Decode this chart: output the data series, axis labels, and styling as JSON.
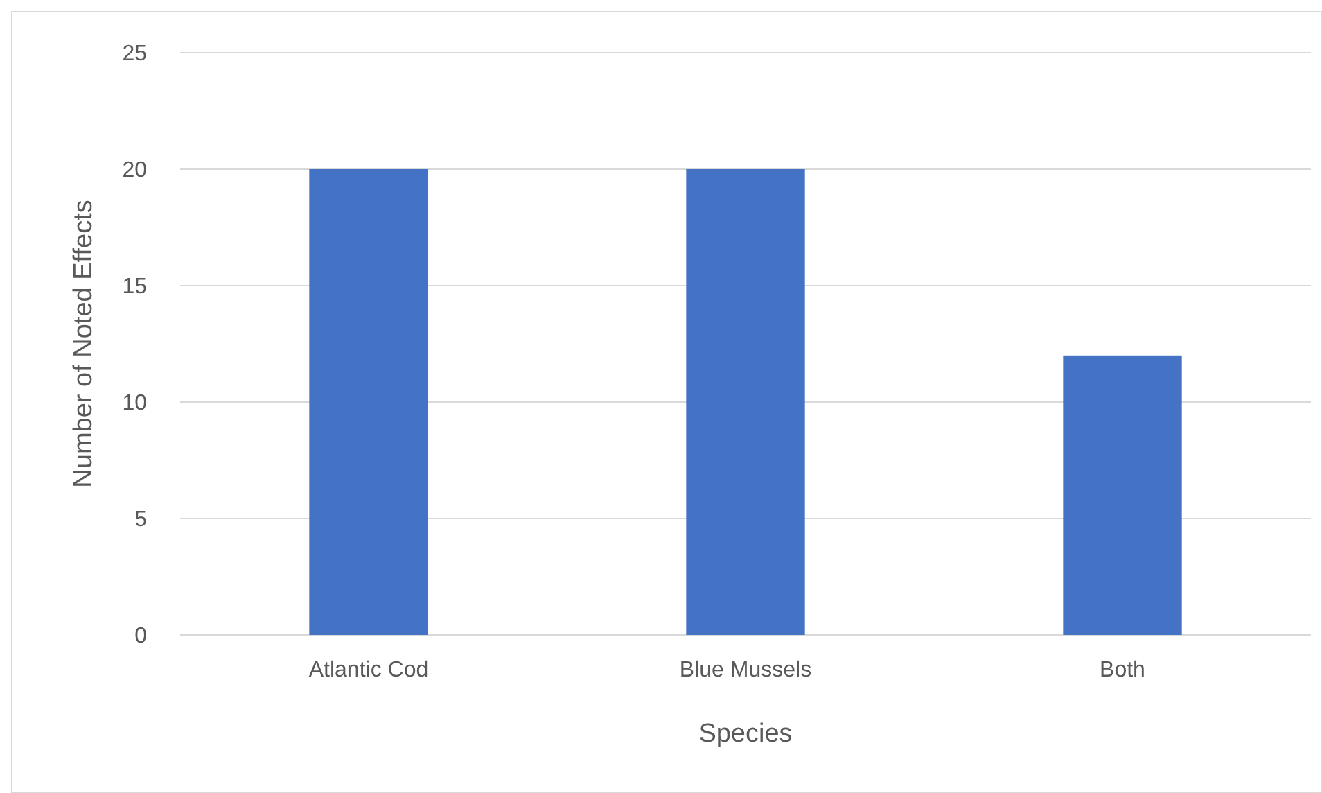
{
  "chart_data": {
    "type": "bar",
    "xlabel": "Species",
    "ylabel": "Number of Noted Effects",
    "categories": [
      "Atlantic Cod",
      "Blue Mussels",
      "Both"
    ],
    "values": [
      20,
      20,
      12
    ],
    "color": "#4472c4",
    "ylim": [
      0,
      25
    ],
    "yticks": [
      0,
      5,
      10,
      15,
      20,
      25
    ],
    "grid": "y"
  }
}
